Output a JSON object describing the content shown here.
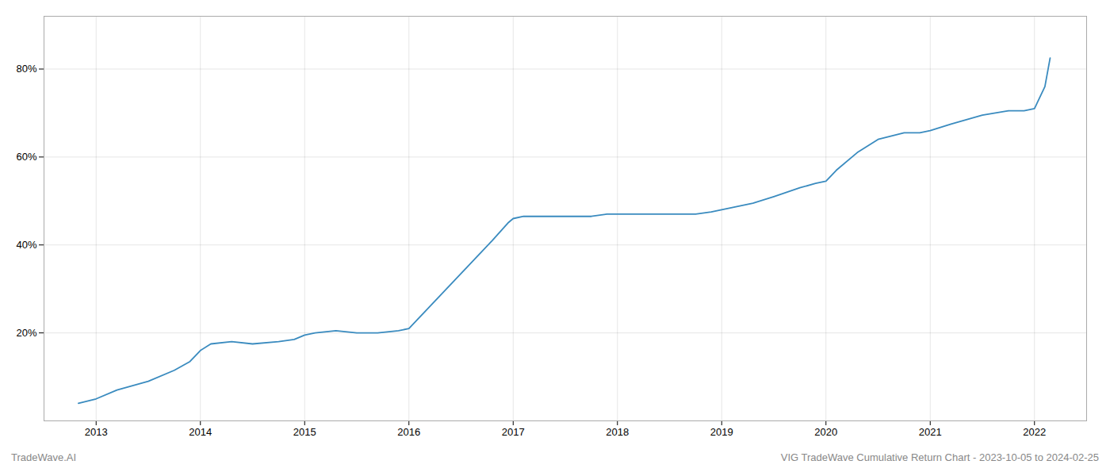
{
  "chart_data": {
    "type": "line",
    "title": "VIG TradeWave Cumulative Return Chart - 2023-10-05 to 2024-02-25",
    "annotations": [
      "TradeWave.AI"
    ],
    "color": "#3a8bbf",
    "x": [
      2012.83,
      2013.0,
      2013.2,
      2013.5,
      2013.75,
      2013.9,
      2014.0,
      2014.1,
      2014.3,
      2014.5,
      2014.75,
      2014.9,
      2015.0,
      2015.1,
      2015.3,
      2015.5,
      2015.7,
      2015.9,
      2016.0,
      2016.2,
      2016.4,
      2016.6,
      2016.8,
      2016.95,
      2017.0,
      2017.1,
      2017.3,
      2017.5,
      2017.75,
      2017.9,
      2018.0,
      2018.2,
      2018.5,
      2018.75,
      2018.9,
      2019.0,
      2019.1,
      2019.3,
      2019.5,
      2019.75,
      2019.9,
      2020.0,
      2020.1,
      2020.3,
      2020.5,
      2020.75,
      2020.9,
      2021.0,
      2021.2,
      2021.5,
      2021.75,
      2021.9,
      2022.0,
      2022.1,
      2022.15
    ],
    "values": [
      4.0,
      5.0,
      7.0,
      9.0,
      11.5,
      13.5,
      16.0,
      17.5,
      18.0,
      17.5,
      18.0,
      18.5,
      19.5,
      20.0,
      20.5,
      20.0,
      20.0,
      20.5,
      21.0,
      26.0,
      31.0,
      36.0,
      41.0,
      45.0,
      46.0,
      46.5,
      46.5,
      46.5,
      46.5,
      47.0,
      47.0,
      47.0,
      47.0,
      47.0,
      47.5,
      48.0,
      48.5,
      49.5,
      51.0,
      53.0,
      54.0,
      54.5,
      57.0,
      61.0,
      64.0,
      65.5,
      65.5,
      66.0,
      67.5,
      69.5,
      70.5,
      70.5,
      71.0,
      76.0,
      82.5
    ],
    "xlim": [
      2012.5,
      2022.5
    ],
    "xticks": [
      2013,
      2014,
      2015,
      2016,
      2017,
      2018,
      2019,
      2020,
      2021,
      2022
    ],
    "ylim": [
      0,
      92
    ],
    "yticks": [
      {
        "value": 20,
        "label": "20%"
      },
      {
        "value": 40,
        "label": "40%"
      },
      {
        "value": 60,
        "label": "60%"
      },
      {
        "value": 80,
        "label": "80%"
      }
    ],
    "grid": true
  }
}
